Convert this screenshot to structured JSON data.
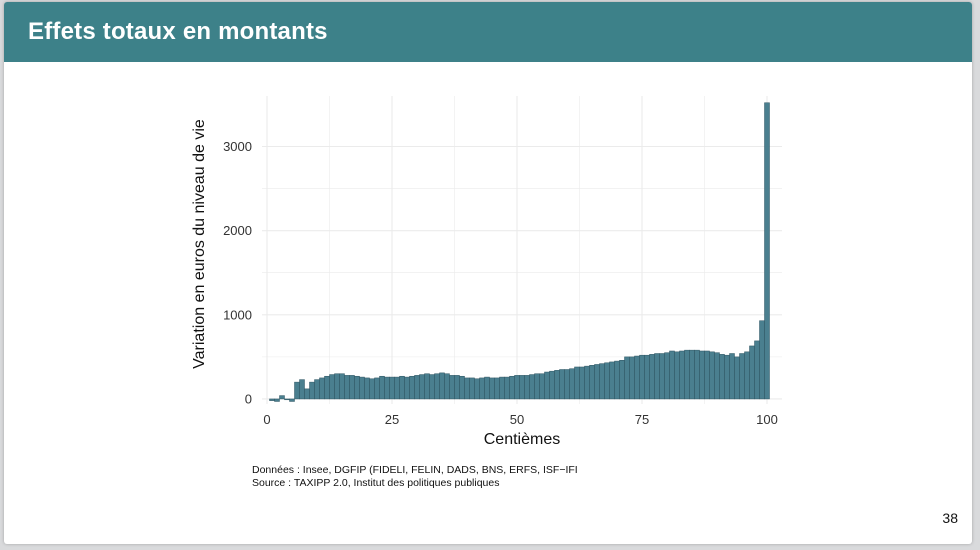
{
  "slide": {
    "title": "Effets totaux en montants",
    "page_number": "38",
    "notes": {
      "data_source": "Données : Insee, DGFIP (FIDELI, FELIN, DADS, BNS, ERFS, ISF−IFI",
      "source": "Source : TAXIPP 2.0, Institut des politiques publiques"
    }
  },
  "colors": {
    "header": "#3d8189",
    "bar_fill": "#4a7f8f",
    "bar_stroke": "#2f5562",
    "grid": "#ebebeb"
  },
  "chart_data": {
    "type": "bar",
    "title": "",
    "xlabel": "Centièmes",
    "ylabel": "Variation en euros du niveau de vie",
    "xlim": [
      -1,
      103
    ],
    "ylim": [
      -60,
      3600
    ],
    "x_ticks": [
      0,
      25,
      50,
      75,
      100
    ],
    "y_ticks": [
      0,
      1000,
      2000,
      3000
    ],
    "grid": true,
    "x": [
      1,
      2,
      3,
      4,
      5,
      6,
      7,
      8,
      9,
      10,
      11,
      12,
      13,
      14,
      15,
      16,
      17,
      18,
      19,
      20,
      21,
      22,
      23,
      24,
      25,
      26,
      27,
      28,
      29,
      30,
      31,
      32,
      33,
      34,
      35,
      36,
      37,
      38,
      39,
      40,
      41,
      42,
      43,
      44,
      45,
      46,
      47,
      48,
      49,
      50,
      51,
      52,
      53,
      54,
      55,
      56,
      57,
      58,
      59,
      60,
      61,
      62,
      63,
      64,
      65,
      66,
      67,
      68,
      69,
      70,
      71,
      72,
      73,
      74,
      75,
      76,
      77,
      78,
      79,
      80,
      81,
      82,
      83,
      84,
      85,
      86,
      87,
      88,
      89,
      90,
      91,
      92,
      93,
      94,
      95,
      96,
      97,
      98,
      99,
      100
    ],
    "values": [
      -20,
      -30,
      40,
      -10,
      -30,
      200,
      230,
      120,
      200,
      230,
      250,
      270,
      290,
      300,
      300,
      280,
      280,
      270,
      260,
      250,
      240,
      250,
      270,
      260,
      260,
      260,
      270,
      260,
      270,
      280,
      290,
      300,
      290,
      300,
      310,
      300,
      280,
      280,
      270,
      250,
      250,
      240,
      250,
      260,
      250,
      250,
      260,
      260,
      270,
      280,
      280,
      280,
      290,
      300,
      300,
      320,
      330,
      340,
      350,
      350,
      360,
      380,
      380,
      390,
      400,
      410,
      420,
      430,
      440,
      450,
      460,
      500,
      500,
      510,
      520,
      520,
      530,
      540,
      540,
      550,
      570,
      560,
      570,
      580,
      580,
      580,
      570,
      570,
      560,
      550,
      530,
      520,
      540,
      500,
      540,
      560,
      630,
      690,
      930,
      3520
    ]
  }
}
